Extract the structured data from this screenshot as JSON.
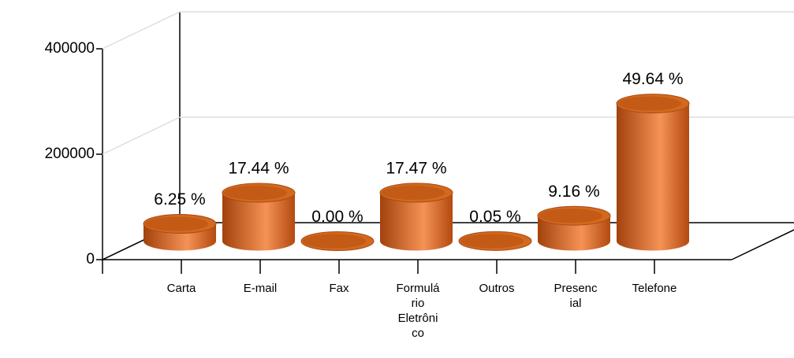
{
  "chart_data": {
    "type": "bar3d",
    "categories": [
      "Carta",
      "E-mail",
      "Fax",
      "Formulário Eletrônico",
      "Outros",
      "Presencial",
      "Telefone"
    ],
    "values": [
      32900,
      91700,
      0,
      91900,
      260,
      48200,
      261100
    ],
    "percent_labels": [
      "6.25 %",
      "17.44 %",
      "0.00 %",
      "17.47 %",
      "0.05 %",
      "9.16 %",
      "49.64 %"
    ],
    "color": "#d2691e",
    "ylim": [
      0,
      400000
    ],
    "yticks": [
      0,
      200000,
      400000
    ],
    "grid": true
  }
}
